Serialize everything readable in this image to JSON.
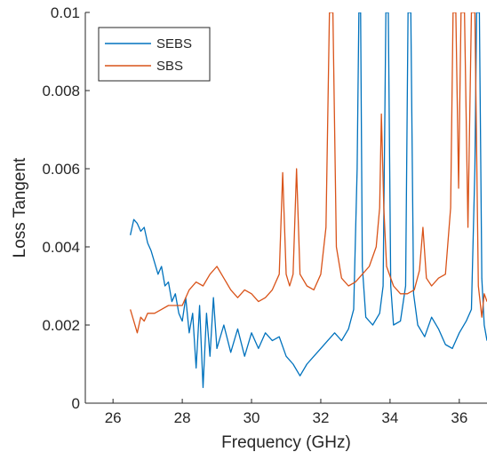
{
  "chart_data": {
    "type": "line",
    "xlabel": "Frequency (GHz)",
    "ylabel": "Loss Tangent",
    "xlim": [
      25.2,
      36.8
    ],
    "ylim": [
      0,
      0.01
    ],
    "xticks": [
      26,
      28,
      30,
      32,
      34,
      36
    ],
    "xtick_labels": [
      "26",
      "28",
      "30",
      "32",
      "34",
      "36"
    ],
    "yticks": [
      0,
      0.002,
      0.004,
      0.006,
      0.008,
      0.01
    ],
    "ytick_labels": [
      "0",
      "0.002",
      "0.004",
      "0.006",
      "0.008",
      "0.01"
    ],
    "grid": false,
    "legend_position": "top-left",
    "series": [
      {
        "name": "SEBS",
        "color": "#0072BD",
        "points": [
          [
            26.5,
            0.0043
          ],
          [
            26.6,
            0.0047
          ],
          [
            26.7,
            0.0046
          ],
          [
            26.8,
            0.0044
          ],
          [
            26.9,
            0.0045
          ],
          [
            27.0,
            0.0041
          ],
          [
            27.1,
            0.0039
          ],
          [
            27.2,
            0.0036
          ],
          [
            27.3,
            0.0033
          ],
          [
            27.4,
            0.0035
          ],
          [
            27.5,
            0.003
          ],
          [
            27.6,
            0.0031
          ],
          [
            27.7,
            0.0026
          ],
          [
            27.8,
            0.0028
          ],
          [
            27.9,
            0.0023
          ],
          [
            28.0,
            0.0021
          ],
          [
            28.1,
            0.0027
          ],
          [
            28.2,
            0.0018
          ],
          [
            28.3,
            0.0023
          ],
          [
            28.4,
            0.0009
          ],
          [
            28.5,
            0.0025
          ],
          [
            28.6,
            0.0004
          ],
          [
            28.7,
            0.0023
          ],
          [
            28.8,
            0.0012
          ],
          [
            28.9,
            0.0027
          ],
          [
            29.0,
            0.0014
          ],
          [
            29.2,
            0.002
          ],
          [
            29.4,
            0.0013
          ],
          [
            29.6,
            0.0019
          ],
          [
            29.8,
            0.0012
          ],
          [
            30.0,
            0.0018
          ],
          [
            30.2,
            0.0014
          ],
          [
            30.4,
            0.0018
          ],
          [
            30.6,
            0.0016
          ],
          [
            30.8,
            0.0017
          ],
          [
            31.0,
            0.0012
          ],
          [
            31.2,
            0.001
          ],
          [
            31.4,
            0.0007
          ],
          [
            31.6,
            0.001
          ],
          [
            31.8,
            0.0012
          ],
          [
            32.0,
            0.0014
          ],
          [
            32.2,
            0.0016
          ],
          [
            32.4,
            0.0018
          ],
          [
            32.6,
            0.0016
          ],
          [
            32.8,
            0.0019
          ],
          [
            32.95,
            0.0024
          ],
          [
            33.05,
            0.006
          ],
          [
            33.1,
            0.01
          ],
          [
            33.15,
            0.01
          ],
          [
            33.2,
            0.0035
          ],
          [
            33.3,
            0.0022
          ],
          [
            33.5,
            0.002
          ],
          [
            33.7,
            0.0023
          ],
          [
            33.8,
            0.003
          ],
          [
            33.88,
            0.01
          ],
          [
            33.95,
            0.01
          ],
          [
            34.02,
            0.003
          ],
          [
            34.1,
            0.002
          ],
          [
            34.3,
            0.0021
          ],
          [
            34.45,
            0.003
          ],
          [
            34.52,
            0.01
          ],
          [
            34.6,
            0.01
          ],
          [
            34.68,
            0.0028
          ],
          [
            34.8,
            0.002
          ],
          [
            35.0,
            0.0017
          ],
          [
            35.2,
            0.0022
          ],
          [
            35.4,
            0.0019
          ],
          [
            35.6,
            0.0015
          ],
          [
            35.8,
            0.0014
          ],
          [
            36.0,
            0.0018
          ],
          [
            36.2,
            0.0021
          ],
          [
            36.35,
            0.0024
          ],
          [
            36.45,
            0.006
          ],
          [
            36.5,
            0.01
          ],
          [
            36.58,
            0.01
          ],
          [
            36.65,
            0.0032
          ],
          [
            36.72,
            0.002
          ],
          [
            36.8,
            0.0016
          ]
        ]
      },
      {
        "name": "SBS",
        "color": "#D95319",
        "points": [
          [
            26.5,
            0.0024
          ],
          [
            26.6,
            0.0021
          ],
          [
            26.7,
            0.0018
          ],
          [
            26.8,
            0.0022
          ],
          [
            26.9,
            0.0021
          ],
          [
            27.0,
            0.0023
          ],
          [
            27.2,
            0.0023
          ],
          [
            27.4,
            0.0024
          ],
          [
            27.6,
            0.0025
          ],
          [
            27.8,
            0.0025
          ],
          [
            28.0,
            0.0025
          ],
          [
            28.2,
            0.0029
          ],
          [
            28.4,
            0.0031
          ],
          [
            28.6,
            0.003
          ],
          [
            28.8,
            0.0033
          ],
          [
            29.0,
            0.0035
          ],
          [
            29.2,
            0.0032
          ],
          [
            29.4,
            0.0029
          ],
          [
            29.6,
            0.0027
          ],
          [
            29.8,
            0.0029
          ],
          [
            30.0,
            0.0028
          ],
          [
            30.2,
            0.0026
          ],
          [
            30.4,
            0.0027
          ],
          [
            30.6,
            0.0029
          ],
          [
            30.8,
            0.0033
          ],
          [
            30.9,
            0.0059
          ],
          [
            31.0,
            0.0033
          ],
          [
            31.1,
            0.003
          ],
          [
            31.2,
            0.0033
          ],
          [
            31.3,
            0.006
          ],
          [
            31.4,
            0.0033
          ],
          [
            31.6,
            0.003
          ],
          [
            31.8,
            0.0029
          ],
          [
            32.0,
            0.0033
          ],
          [
            32.15,
            0.0045
          ],
          [
            32.25,
            0.01
          ],
          [
            32.35,
            0.01
          ],
          [
            32.45,
            0.004
          ],
          [
            32.6,
            0.0032
          ],
          [
            32.8,
            0.003
          ],
          [
            33.0,
            0.0031
          ],
          [
            33.2,
            0.0033
          ],
          [
            33.4,
            0.0035
          ],
          [
            33.6,
            0.004
          ],
          [
            33.7,
            0.005
          ],
          [
            33.75,
            0.0074
          ],
          [
            33.82,
            0.005
          ],
          [
            33.9,
            0.0035
          ],
          [
            34.1,
            0.003
          ],
          [
            34.3,
            0.0028
          ],
          [
            34.5,
            0.0028
          ],
          [
            34.7,
            0.0029
          ],
          [
            34.85,
            0.0034
          ],
          [
            34.95,
            0.0045
          ],
          [
            35.05,
            0.0032
          ],
          [
            35.2,
            0.003
          ],
          [
            35.4,
            0.0032
          ],
          [
            35.6,
            0.0033
          ],
          [
            35.75,
            0.005
          ],
          [
            35.82,
            0.01
          ],
          [
            35.9,
            0.01
          ],
          [
            35.98,
            0.0055
          ],
          [
            36.05,
            0.01
          ],
          [
            36.15,
            0.01
          ],
          [
            36.25,
            0.0045
          ],
          [
            36.35,
            0.01
          ],
          [
            36.45,
            0.01
          ],
          [
            36.55,
            0.003
          ],
          [
            36.65,
            0.0022
          ],
          [
            36.72,
            0.0028
          ],
          [
            36.8,
            0.0026
          ]
        ]
      }
    ]
  }
}
